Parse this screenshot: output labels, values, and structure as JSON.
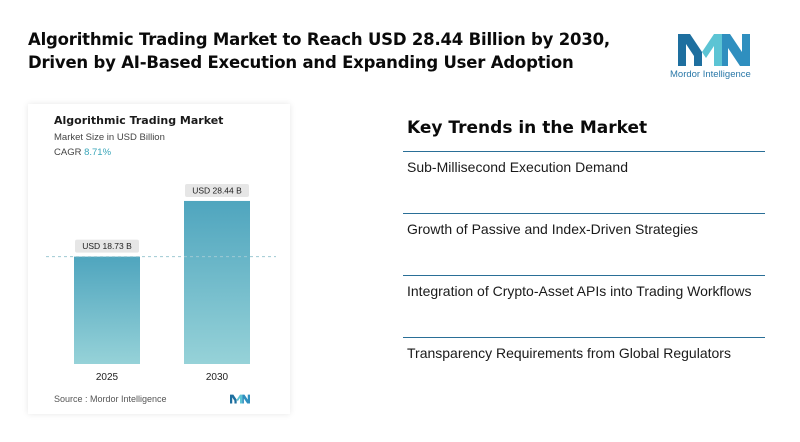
{
  "headline": {
    "line1": "Algorithmic Trading Market to Reach USD 28.44 Billion by 2030,",
    "line2": "Driven by AI-Based Execution and Expanding User Adoption"
  },
  "logo": {
    "text": "Mordor Intelligence"
  },
  "chart_panel": {
    "title": "Algorithmic Trading Market",
    "subtitle": "Market Size in USD Billion",
    "cagr_label": "CAGR",
    "cagr_value": "8.71%",
    "source": "Source :  Mordor Intelligence"
  },
  "chart_data": {
    "type": "bar",
    "title": "Algorithmic Trading Market",
    "ylabel": "Market Size in USD Billion",
    "categories": [
      "2025",
      "2030"
    ],
    "values": [
      18.73,
      28.44
    ],
    "data_labels": [
      "USD 18.73 B",
      "USD 28.44 B"
    ],
    "ylim": [
      0,
      30
    ],
    "grid": false,
    "reference_line": "dashed line at 2025 value"
  },
  "colors": {
    "bar_top": "#4fa5be",
    "bar_bottom": "#96d2d8",
    "accent": "#3aa6b9",
    "divider": "#2a6f97",
    "logo_dark": "#1e6f9f",
    "logo_light": "#5cc4d4"
  },
  "trends": {
    "title": "Key Trends in the Market",
    "items": [
      "Sub-Millisecond Execution Demand",
      "Growth of Passive and Index-Driven Strategies",
      "Integration of Crypto-Asset APIs into Trading Workflows",
      "Transparency Requirements from Global Regulators"
    ]
  }
}
